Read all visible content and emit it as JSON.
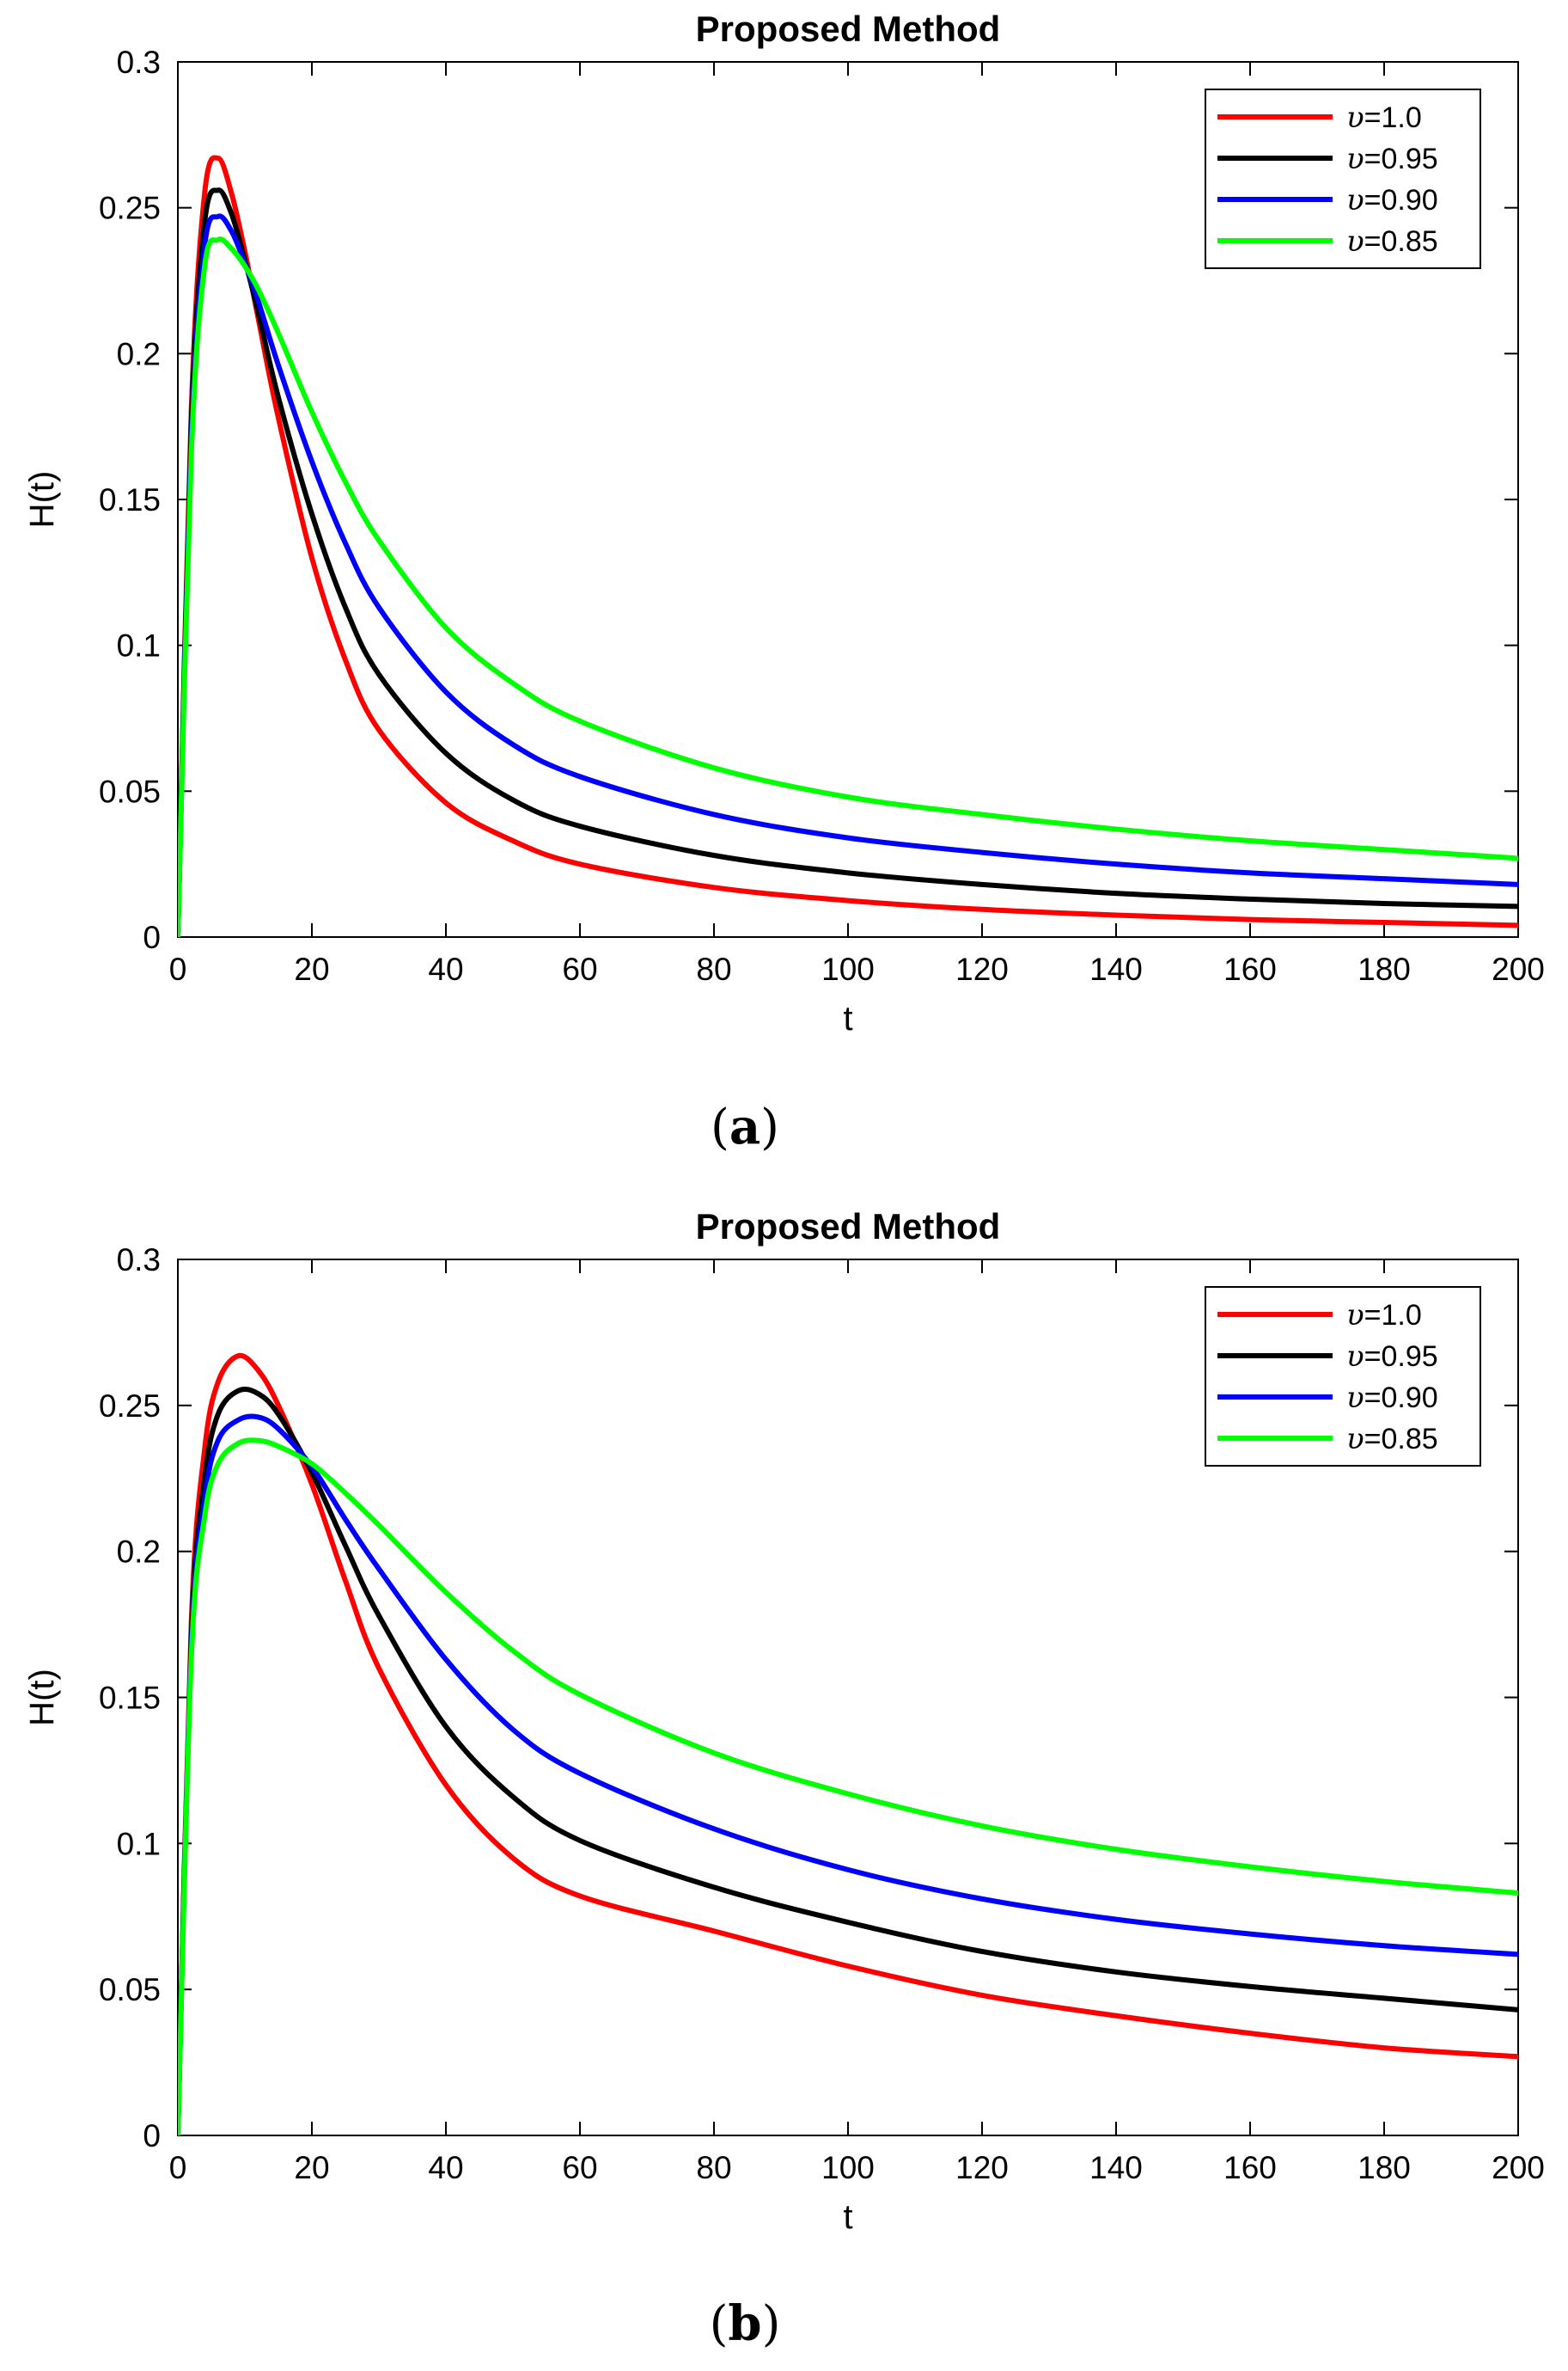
{
  "chart_data": [
    {
      "type": "line",
      "panel": "a",
      "caption_open": "(",
      "caption_letter": "a",
      "caption_close": ")",
      "title": "Proposed Method",
      "xlabel": "t",
      "ylabel": "H(t)",
      "xlim": [
        0,
        200
      ],
      "ylim": [
        0,
        0.3
      ],
      "xticks": [
        "0",
        "20",
        "40",
        "60",
        "80",
        "100",
        "120",
        "140",
        "160",
        "180",
        "200"
      ],
      "yticks": [
        "0",
        "0.05",
        "0.1",
        "0.15",
        "0.2",
        "0.25",
        "0.3"
      ],
      "grid": false,
      "legend_position": "top-right",
      "x": [
        0,
        2,
        4,
        6,
        8,
        10,
        12,
        15,
        20,
        25,
        30,
        40,
        50,
        60,
        80,
        100,
        120,
        140,
        160,
        180,
        200
      ],
      "series": [
        {
          "name": "υ=1.0",
          "symbol": "υ",
          "value_text": "=1.0",
          "color": "#ff0000",
          "values": [
            0,
            0.18,
            0.255,
            0.267,
            0.255,
            0.235,
            0.212,
            0.178,
            0.13,
            0.095,
            0.071,
            0.046,
            0.033,
            0.025,
            0.017,
            0.0125,
            0.0095,
            0.0075,
            0.006,
            0.005,
            0.004
          ]
        },
        {
          "name": "υ=0.95",
          "symbol": "υ",
          "value_text": "=0.95",
          "color": "#000000",
          "values": [
            0,
            0.175,
            0.245,
            0.256,
            0.248,
            0.232,
            0.214,
            0.185,
            0.145,
            0.113,
            0.09,
            0.063,
            0.047,
            0.038,
            0.028,
            0.022,
            0.018,
            0.015,
            0.013,
            0.0115,
            0.0105
          ]
        },
        {
          "name": "υ=0.90",
          "symbol": "υ",
          "value_text": "=0.90",
          "color": "#0000ff",
          "values": [
            0,
            0.17,
            0.237,
            0.247,
            0.242,
            0.231,
            0.218,
            0.196,
            0.163,
            0.135,
            0.113,
            0.084,
            0.066,
            0.055,
            0.042,
            0.034,
            0.029,
            0.025,
            0.022,
            0.02,
            0.018
          ]
        },
        {
          "name": "υ=0.85",
          "symbol": "υ",
          "value_text": "=0.85",
          "color": "#00ff00",
          "values": [
            0,
            0.165,
            0.23,
            0.239,
            0.236,
            0.23,
            0.222,
            0.207,
            0.18,
            0.156,
            0.136,
            0.106,
            0.087,
            0.074,
            0.058,
            0.048,
            0.042,
            0.037,
            0.033,
            0.03,
            0.027
          ]
        }
      ]
    },
    {
      "type": "line",
      "panel": "b",
      "caption_open": "(",
      "caption_letter": "b",
      "caption_close": ")",
      "title": "Proposed Method",
      "xlabel": "t",
      "ylabel": "H(t)",
      "xlim": [
        0,
        200
      ],
      "ylim": [
        0,
        0.3
      ],
      "xticks": [
        "0",
        "20",
        "40",
        "60",
        "80",
        "100",
        "120",
        "140",
        "160",
        "180",
        "200"
      ],
      "yticks": [
        "0",
        "0.05",
        "0.1",
        "0.15",
        "0.2",
        "0.25",
        "0.3"
      ],
      "grid": false,
      "legend_position": "top-right",
      "x": [
        0,
        2,
        4,
        6,
        9,
        12,
        15,
        20,
        25,
        30,
        40,
        50,
        60,
        80,
        100,
        120,
        140,
        160,
        180,
        200
      ],
      "series": [
        {
          "name": "υ=1.0",
          "symbol": "υ",
          "value_text": "=1.0",
          "color": "#ff0000",
          "values": [
            0,
            0.175,
            0.235,
            0.258,
            0.267,
            0.262,
            0.25,
            0.223,
            0.19,
            0.16,
            0.12,
            0.095,
            0.082,
            0.07,
            0.058,
            0.048,
            0.041,
            0.035,
            0.03,
            0.027
          ]
        },
        {
          "name": "υ=0.95",
          "symbol": "υ",
          "value_text": "=0.95",
          "color": "#000000",
          "values": [
            0,
            0.17,
            0.225,
            0.247,
            0.255,
            0.254,
            0.247,
            0.227,
            0.202,
            0.178,
            0.14,
            0.116,
            0.101,
            0.085,
            0.073,
            0.063,
            0.056,
            0.051,
            0.047,
            0.043
          ]
        },
        {
          "name": "υ=0.90",
          "symbol": "υ",
          "value_text": "=0.90",
          "color": "#0000ff",
          "values": [
            0,
            0.167,
            0.218,
            0.238,
            0.245,
            0.246,
            0.242,
            0.229,
            0.211,
            0.194,
            0.163,
            0.139,
            0.124,
            0.105,
            0.091,
            0.081,
            0.074,
            0.069,
            0.065,
            0.062
          ]
        },
        {
          "name": "υ=0.85",
          "symbol": "υ",
          "value_text": "=0.85",
          "color": "#00ff00",
          "values": [
            0,
            0.163,
            0.212,
            0.23,
            0.237,
            0.238,
            0.236,
            0.23,
            0.22,
            0.209,
            0.186,
            0.166,
            0.151,
            0.131,
            0.117,
            0.106,
            0.098,
            0.092,
            0.087,
            0.083
          ]
        }
      ]
    }
  ]
}
